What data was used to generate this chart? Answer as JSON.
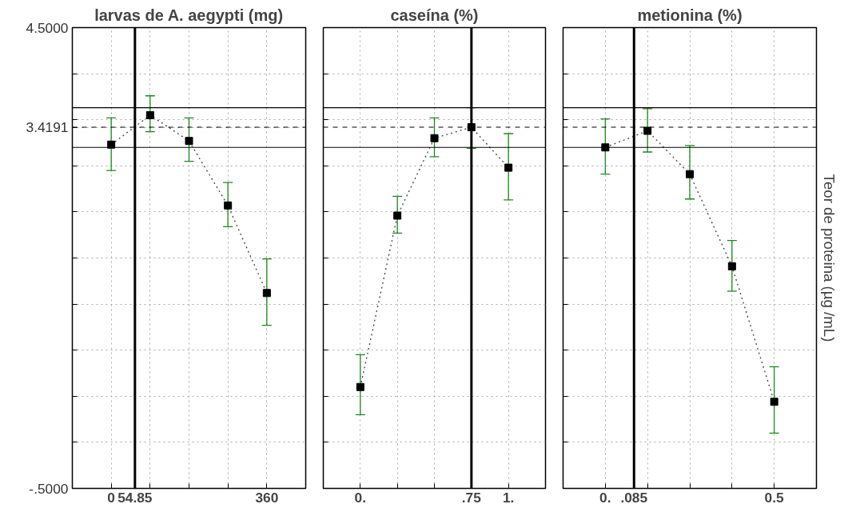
{
  "chart_data": [
    {
      "type": "line",
      "title": "larvas de A. aegypti (mg)",
      "x": [
        0,
        90,
        180,
        270,
        360
      ],
      "values": [
        3.23,
        3.55,
        3.27,
        2.57,
        1.62
      ],
      "color": "#000000",
      "marker": "square",
      "line_style": "dotted",
      "errors": [
        [
          2.95,
          3.52
        ],
        [
          3.37,
          3.76
        ],
        [
          3.05,
          3.52
        ],
        [
          2.34,
          2.82
        ],
        [
          1.27,
          1.99
        ]
      ],
      "xlim": [
        -90,
        450
      ],
      "ylim": [
        -0.5,
        4.5
      ],
      "xticks": [
        0,
        {
          "value": 54.85,
          "label": "54.85"
        },
        {
          "value": 90,
          "label": null
        },
        {
          "value": 180,
          "label": null
        },
        {
          "value": 270,
          "label": null
        },
        360
      ],
      "yticks": [
        {
          "value": -0.5,
          "label": "-.5000"
        },
        {
          "value": 0,
          "label": null
        },
        {
          "value": 0.5,
          "label": null
        },
        {
          "value": 1,
          "label": null
        },
        {
          "value": 1.5,
          "label": null
        },
        {
          "value": 2,
          "label": null
        },
        {
          "value": 2.5,
          "label": null
        },
        {
          "value": 3,
          "label": null
        },
        {
          "value": 3.4191,
          "label": "3.4191"
        },
        {
          "value": 3.5,
          "label": null
        },
        {
          "value": 4,
          "label": null
        },
        {
          "value": 4.5,
          "label": "4.5000"
        }
      ],
      "grid": true,
      "ref_lines": [
        {
          "axis": "x",
          "value": 54.85,
          "line_style": "solid"
        },
        {
          "axis": "y",
          "value": 3.63,
          "line_style": "solid"
        },
        {
          "axis": "y",
          "value": 3.2,
          "line_style": "solid"
        },
        {
          "axis": "y",
          "value": 3.4191,
          "line_style": "dashed"
        }
      ]
    },
    {
      "type": "line",
      "title": "caseína (%)",
      "x": [
        0,
        0.25,
        0.5,
        0.75,
        1
      ],
      "values": [
        0.6,
        2.46,
        3.3,
        3.4191,
        2.98
      ],
      "color": "#000000",
      "marker": "square",
      "line_style": "dotted",
      "errors": [
        [
          0.3,
          0.95
        ],
        [
          2.27,
          2.67
        ],
        [
          3.1,
          3.52
        ],
        [
          3.19,
          3.63
        ],
        [
          2.63,
          3.35
        ]
      ],
      "xlim": [
        -0.25,
        1.25
      ],
      "ylim": [
        -0.5,
        4.5
      ],
      "xticks": [
        {
          "value": 0,
          "label": "0."
        },
        {
          "value": 0.25,
          "label": null
        },
        {
          "value": 0.5,
          "label": null
        },
        {
          "value": 0.75,
          "label": ".75"
        },
        {
          "value": 1,
          "label": "1."
        }
      ],
      "yticks": [
        {
          "value": -0.5,
          "label": null
        },
        {
          "value": 0,
          "label": null
        },
        {
          "value": 0.5,
          "label": null
        },
        {
          "value": 1,
          "label": null
        },
        {
          "value": 1.5,
          "label": null
        },
        {
          "value": 2,
          "label": null
        },
        {
          "value": 2.5,
          "label": null
        },
        {
          "value": 3,
          "label": null
        },
        {
          "value": 3.5,
          "label": null
        },
        {
          "value": 4,
          "label": null
        },
        {
          "value": 4.5,
          "label": null
        }
      ],
      "grid": true,
      "tick_labels": "x",
      "ref_lines": [
        {
          "axis": "x",
          "value": 0.75,
          "line_style": "solid"
        },
        {
          "axis": "y",
          "value": 3.63,
          "line_style": "solid"
        },
        {
          "axis": "y",
          "value": 3.2,
          "line_style": "solid"
        },
        {
          "axis": "y",
          "value": 3.4191,
          "line_style": "dashed"
        }
      ]
    },
    {
      "type": "line",
      "title": "metionina (%)",
      "ylabel": "Teor de proteina (µg /mL)",
      "x": [
        0,
        0.125,
        0.25,
        0.375,
        0.5
      ],
      "values": [
        3.2,
        3.38,
        2.91,
        1.91,
        0.44
      ],
      "color": "#000000",
      "marker": "square",
      "line_style": "dotted",
      "errors": [
        [
          2.91,
          3.51
        ],
        [
          3.15,
          3.62
        ],
        [
          2.64,
          3.22
        ],
        [
          1.64,
          2.19
        ],
        [
          0.1,
          0.82
        ]
      ],
      "xlim": [
        -0.125,
        0.625
      ],
      "ylim": [
        -0.5,
        4.5
      ],
      "xticks": [
        {
          "value": 0,
          "label": "0."
        },
        {
          "value": 0.085,
          "label": ".085"
        },
        {
          "value": 0.125,
          "label": null
        },
        {
          "value": 0.25,
          "label": null
        },
        {
          "value": 0.375,
          "label": null
        },
        0.5
      ],
      "yticks": [
        {
          "value": -0.5,
          "label": null
        },
        {
          "value": 0,
          "label": null
        },
        {
          "value": 0.5,
          "label": null
        },
        {
          "value": 1,
          "label": null
        },
        {
          "value": 1.5,
          "label": null
        },
        {
          "value": 2,
          "label": null
        },
        {
          "value": 2.5,
          "label": null
        },
        {
          "value": 3,
          "label": null
        },
        {
          "value": 3.5,
          "label": null
        },
        {
          "value": 4,
          "label": null
        },
        {
          "value": 4.5,
          "label": null
        }
      ],
      "grid": true,
      "tick_labels": "x",
      "ref_lines": [
        {
          "axis": "x",
          "value": 0.085,
          "line_style": "solid"
        },
        {
          "axis": "y",
          "value": 3.63,
          "line_style": "solid"
        },
        {
          "axis": "y",
          "value": 3.2,
          "line_style": "solid"
        },
        {
          "axis": "y",
          "value": 3.4191,
          "line_style": "dashed"
        }
      ]
    }
  ]
}
